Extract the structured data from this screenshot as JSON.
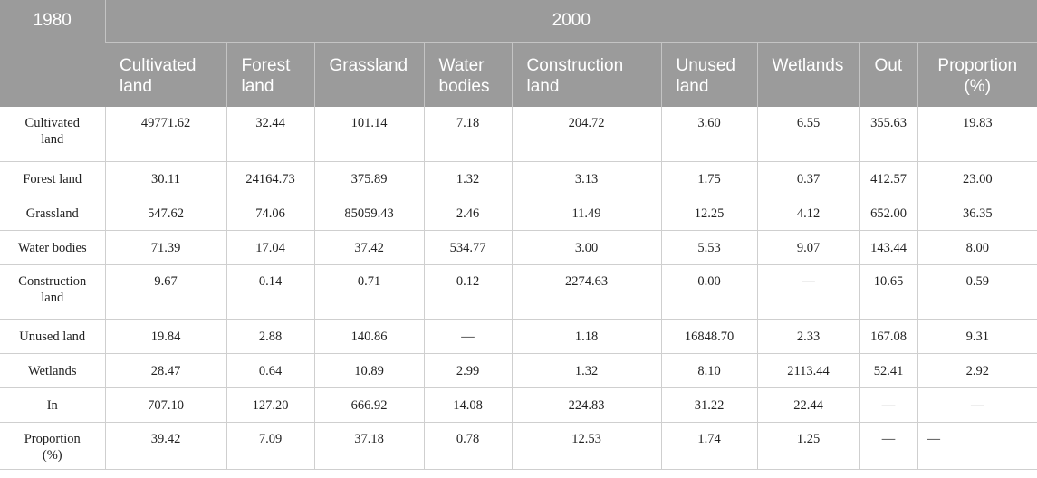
{
  "table": {
    "corner": "1980",
    "group": "2000",
    "columns": [
      [
        "Cultivated",
        "land"
      ],
      [
        "Forest",
        "land"
      ],
      [
        "Grassland"
      ],
      [
        "Water",
        "bodies"
      ],
      [
        "Construction",
        "land"
      ],
      [
        "Unused",
        "land"
      ],
      [
        "Wetlands"
      ],
      [
        "Out"
      ],
      [
        "Proportion",
        "(%)"
      ]
    ],
    "rows": [
      {
        "label": [
          "Cultivated",
          "land"
        ],
        "cells": [
          "49771.62",
          "32.44",
          "101.14",
          "7.18",
          "204.72",
          "3.60",
          "6.55",
          "355.63",
          "19.83"
        ]
      },
      {
        "label": [
          "Forest land"
        ],
        "cells": [
          "30.11",
          "24164.73",
          "375.89",
          "1.32",
          "3.13",
          "1.75",
          "0.37",
          "412.57",
          "23.00"
        ]
      },
      {
        "label": [
          "Grassland"
        ],
        "cells": [
          "547.62",
          "74.06",
          "85059.43",
          "2.46",
          "11.49",
          "12.25",
          "4.12",
          "652.00",
          "36.35"
        ]
      },
      {
        "label": [
          "Water bodies"
        ],
        "cells": [
          "71.39",
          "17.04",
          "37.42",
          "534.77",
          "3.00",
          "5.53",
          "9.07",
          "143.44",
          "8.00"
        ]
      },
      {
        "label": [
          "Construction",
          "land"
        ],
        "cells": [
          "9.67",
          "0.14",
          "0.71",
          "0.12",
          "2274.63",
          "0.00",
          "—",
          "10.65",
          "0.59"
        ]
      },
      {
        "label": [
          "Unused land"
        ],
        "cells": [
          "19.84",
          "2.88",
          "140.86",
          "—",
          "1.18",
          "16848.70",
          "2.33",
          "167.08",
          "9.31"
        ]
      },
      {
        "label": [
          "Wetlands"
        ],
        "cells": [
          "28.47",
          "0.64",
          "10.89",
          "2.99",
          "1.32",
          "8.10",
          "2113.44",
          "52.41",
          "2.92"
        ]
      },
      {
        "label": [
          "In"
        ],
        "cells": [
          "707.10",
          "127.20",
          "666.92",
          "14.08",
          "224.83",
          "31.22",
          "22.44",
          "—",
          "—"
        ]
      },
      {
        "label": [
          "Proportion",
          "(%)"
        ],
        "cells": [
          "39.42",
          "7.09",
          "37.18",
          "0.78",
          "12.53",
          "1.74",
          "1.25",
          "—",
          "—"
        ]
      }
    ]
  }
}
